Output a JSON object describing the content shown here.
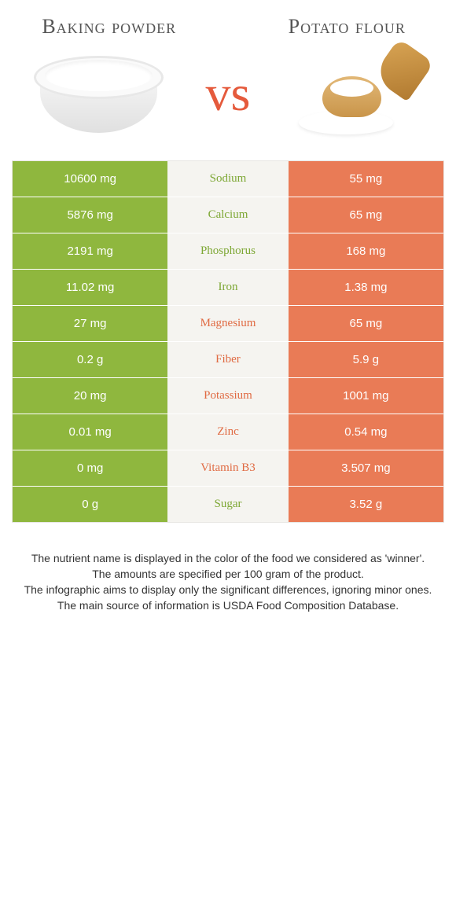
{
  "titles": {
    "left": "Baking powder",
    "right": "Potato flour"
  },
  "vs_label": "vs",
  "colors": {
    "left_bg": "#8fb73e",
    "right_bg": "#e97b56",
    "mid_green": "#7da734",
    "mid_orange": "#e06a42",
    "mid_bg": "#f5f4f0",
    "vs_color": "#e55a3c"
  },
  "rows": [
    {
      "left": "10600 mg",
      "label": "Sodium",
      "winner": "left",
      "right": "55 mg"
    },
    {
      "left": "5876 mg",
      "label": "Calcium",
      "winner": "left",
      "right": "65 mg"
    },
    {
      "left": "2191 mg",
      "label": "Phosphorus",
      "winner": "left",
      "right": "168 mg"
    },
    {
      "left": "11.02 mg",
      "label": "Iron",
      "winner": "left",
      "right": "1.38 mg"
    },
    {
      "left": "27 mg",
      "label": "Magnesium",
      "winner": "right",
      "right": "65 mg"
    },
    {
      "left": "0.2 g",
      "label": "Fiber",
      "winner": "right",
      "right": "5.9 g"
    },
    {
      "left": "20 mg",
      "label": "Potassium",
      "winner": "right",
      "right": "1001 mg"
    },
    {
      "left": "0.01 mg",
      "label": "Zinc",
      "winner": "right",
      "right": "0.54 mg"
    },
    {
      "left": "0 mg",
      "label": "Vitamin B3",
      "winner": "right",
      "right": "3.507 mg"
    },
    {
      "left": "0 g",
      "label": "Sugar",
      "winner": "left",
      "right": "3.52 g"
    }
  ],
  "footer": {
    "l1": "The nutrient name is displayed in the color of the food we considered as 'winner'.",
    "l2": "The amounts are specified per 100 gram of the product.",
    "l3": "The infographic aims to display only the significant differences, ignoring minor ones.",
    "l4": "The main source of information is USDA Food Composition Database."
  }
}
